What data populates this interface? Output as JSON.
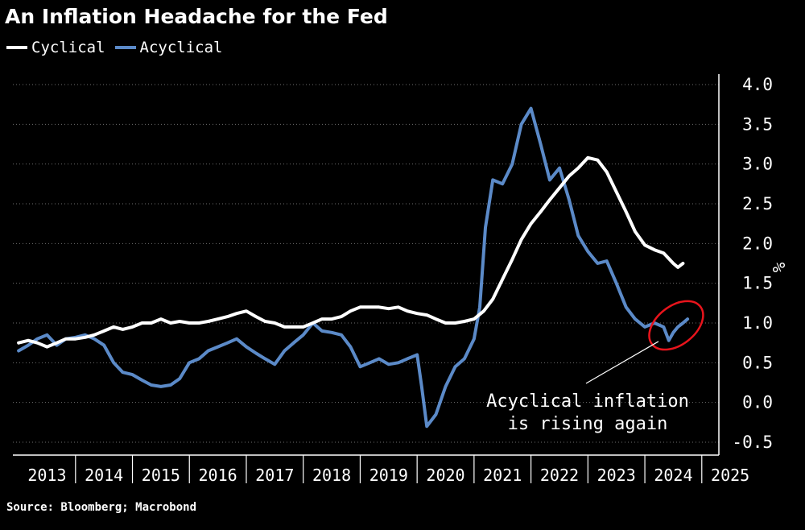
{
  "title": "An Inflation Headache for the Fed",
  "legend": {
    "items": [
      {
        "label": "Cyclical",
        "color": "#ffffff"
      },
      {
        "label": "Acyclical",
        "color": "#5b8ac8"
      }
    ]
  },
  "source": "Source: Bloomberg; Macrobond",
  "chart_data": {
    "type": "line",
    "y_unit": "%",
    "ylim": [
      -0.5,
      4.0
    ],
    "y_ticks": [
      4.0,
      3.5,
      3.0,
      2.5,
      2.0,
      1.5,
      1.0,
      0.5,
      0.0,
      -0.5
    ],
    "y_tick_labels": [
      "4.0",
      "3.5",
      "3.0",
      "2.5",
      "2.0",
      "1.5",
      "1.0",
      "0.5",
      "0.0",
      "-0.5"
    ],
    "y_axis_side": "right",
    "xlim": [
      2012.9,
      2025.3
    ],
    "x_ticks": [
      2013,
      2014,
      2015,
      2016,
      2017,
      2018,
      2019,
      2020,
      2021,
      2022,
      2023,
      2024,
      2025
    ],
    "x_tick_labels": [
      "2013",
      "2014",
      "2015",
      "2016",
      "2017",
      "2018",
      "2019",
      "2020",
      "2021",
      "2022",
      "2023",
      "2024",
      "2025"
    ],
    "grid": true,
    "annotation": {
      "lines": [
        "Acyclical inflation",
        "is rising again"
      ],
      "target_x": 2024.55,
      "target_y": 0.95,
      "ellipse_color": "#e8141c"
    },
    "series": [
      {
        "name": "Cyclical",
        "color": "#ffffff",
        "points": [
          [
            2013.0,
            0.75
          ],
          [
            2013.17,
            0.78
          ],
          [
            2013.33,
            0.75
          ],
          [
            2013.5,
            0.7
          ],
          [
            2013.67,
            0.75
          ],
          [
            2013.83,
            0.8
          ],
          [
            2014.0,
            0.8
          ],
          [
            2014.17,
            0.82
          ],
          [
            2014.33,
            0.85
          ],
          [
            2014.5,
            0.9
          ],
          [
            2014.67,
            0.95
          ],
          [
            2014.83,
            0.92
          ],
          [
            2015.0,
            0.95
          ],
          [
            2015.17,
            1.0
          ],
          [
            2015.33,
            1.0
          ],
          [
            2015.5,
            1.05
          ],
          [
            2015.67,
            1.0
          ],
          [
            2015.83,
            1.02
          ],
          [
            2016.0,
            1.0
          ],
          [
            2016.17,
            1.0
          ],
          [
            2016.33,
            1.02
          ],
          [
            2016.5,
            1.05
          ],
          [
            2016.67,
            1.08
          ],
          [
            2016.83,
            1.12
          ],
          [
            2017.0,
            1.15
          ],
          [
            2017.17,
            1.08
          ],
          [
            2017.33,
            1.02
          ],
          [
            2017.5,
            1.0
          ],
          [
            2017.67,
            0.95
          ],
          [
            2017.83,
            0.95
          ],
          [
            2018.0,
            0.95
          ],
          [
            2018.17,
            1.0
          ],
          [
            2018.33,
            1.05
          ],
          [
            2018.5,
            1.05
          ],
          [
            2018.67,
            1.08
          ],
          [
            2018.83,
            1.15
          ],
          [
            2019.0,
            1.2
          ],
          [
            2019.17,
            1.2
          ],
          [
            2019.33,
            1.2
          ],
          [
            2019.5,
            1.18
          ],
          [
            2019.67,
            1.2
          ],
          [
            2019.83,
            1.15
          ],
          [
            2020.0,
            1.12
          ],
          [
            2020.17,
            1.1
          ],
          [
            2020.33,
            1.05
          ],
          [
            2020.5,
            1.0
          ],
          [
            2020.67,
            1.0
          ],
          [
            2020.83,
            1.02
          ],
          [
            2021.0,
            1.05
          ],
          [
            2021.17,
            1.15
          ],
          [
            2021.33,
            1.3
          ],
          [
            2021.5,
            1.55
          ],
          [
            2021.67,
            1.8
          ],
          [
            2021.83,
            2.05
          ],
          [
            2022.0,
            2.25
          ],
          [
            2022.17,
            2.4
          ],
          [
            2022.33,
            2.55
          ],
          [
            2022.5,
            2.7
          ],
          [
            2022.67,
            2.85
          ],
          [
            2022.83,
            2.95
          ],
          [
            2023.0,
            3.08
          ],
          [
            2023.17,
            3.05
          ],
          [
            2023.33,
            2.9
          ],
          [
            2023.5,
            2.65
          ],
          [
            2023.67,
            2.4
          ],
          [
            2023.83,
            2.15
          ],
          [
            2024.0,
            1.98
          ],
          [
            2024.17,
            1.92
          ],
          [
            2024.33,
            1.88
          ],
          [
            2024.5,
            1.75
          ],
          [
            2024.58,
            1.7
          ],
          [
            2024.67,
            1.75
          ]
        ]
      },
      {
        "name": "Acyclical",
        "color": "#5b8ac8",
        "points": [
          [
            2013.0,
            0.65
          ],
          [
            2013.17,
            0.72
          ],
          [
            2013.33,
            0.8
          ],
          [
            2013.5,
            0.85
          ],
          [
            2013.67,
            0.72
          ],
          [
            2013.83,
            0.8
          ],
          [
            2014.0,
            0.82
          ],
          [
            2014.17,
            0.85
          ],
          [
            2014.33,
            0.8
          ],
          [
            2014.5,
            0.72
          ],
          [
            2014.67,
            0.5
          ],
          [
            2014.83,
            0.38
          ],
          [
            2015.0,
            0.35
          ],
          [
            2015.17,
            0.28
          ],
          [
            2015.33,
            0.22
          ],
          [
            2015.5,
            0.2
          ],
          [
            2015.67,
            0.22
          ],
          [
            2015.83,
            0.3
          ],
          [
            2016.0,
            0.5
          ],
          [
            2016.17,
            0.55
          ],
          [
            2016.33,
            0.65
          ],
          [
            2016.5,
            0.7
          ],
          [
            2016.67,
            0.75
          ],
          [
            2016.83,
            0.8
          ],
          [
            2017.0,
            0.7
          ],
          [
            2017.17,
            0.62
          ],
          [
            2017.33,
            0.55
          ],
          [
            2017.5,
            0.48
          ],
          [
            2017.67,
            0.65
          ],
          [
            2017.83,
            0.75
          ],
          [
            2018.0,
            0.85
          ],
          [
            2018.17,
            1.0
          ],
          [
            2018.33,
            0.9
          ],
          [
            2018.5,
            0.88
          ],
          [
            2018.67,
            0.85
          ],
          [
            2018.83,
            0.7
          ],
          [
            2019.0,
            0.45
          ],
          [
            2019.17,
            0.5
          ],
          [
            2019.33,
            0.55
          ],
          [
            2019.5,
            0.48
          ],
          [
            2019.67,
            0.5
          ],
          [
            2019.83,
            0.55
          ],
          [
            2020.0,
            0.6
          ],
          [
            2020.08,
            0.2
          ],
          [
            2020.17,
            -0.3
          ],
          [
            2020.33,
            -0.15
          ],
          [
            2020.5,
            0.2
          ],
          [
            2020.67,
            0.45
          ],
          [
            2020.83,
            0.55
          ],
          [
            2021.0,
            0.8
          ],
          [
            2021.1,
            1.2
          ],
          [
            2021.2,
            2.2
          ],
          [
            2021.33,
            2.8
          ],
          [
            2021.5,
            2.75
          ],
          [
            2021.67,
            3.0
          ],
          [
            2021.83,
            3.5
          ],
          [
            2022.0,
            3.7
          ],
          [
            2022.17,
            3.25
          ],
          [
            2022.33,
            2.8
          ],
          [
            2022.5,
            2.95
          ],
          [
            2022.67,
            2.55
          ],
          [
            2022.83,
            2.1
          ],
          [
            2023.0,
            1.9
          ],
          [
            2023.17,
            1.75
          ],
          [
            2023.33,
            1.78
          ],
          [
            2023.5,
            1.5
          ],
          [
            2023.67,
            1.2
          ],
          [
            2023.83,
            1.05
          ],
          [
            2024.0,
            0.95
          ],
          [
            2024.17,
            1.0
          ],
          [
            2024.33,
            0.95
          ],
          [
            2024.42,
            0.78
          ],
          [
            2024.5,
            0.88
          ],
          [
            2024.58,
            0.95
          ],
          [
            2024.67,
            1.0
          ],
          [
            2024.75,
            1.05
          ]
        ]
      }
    ]
  }
}
